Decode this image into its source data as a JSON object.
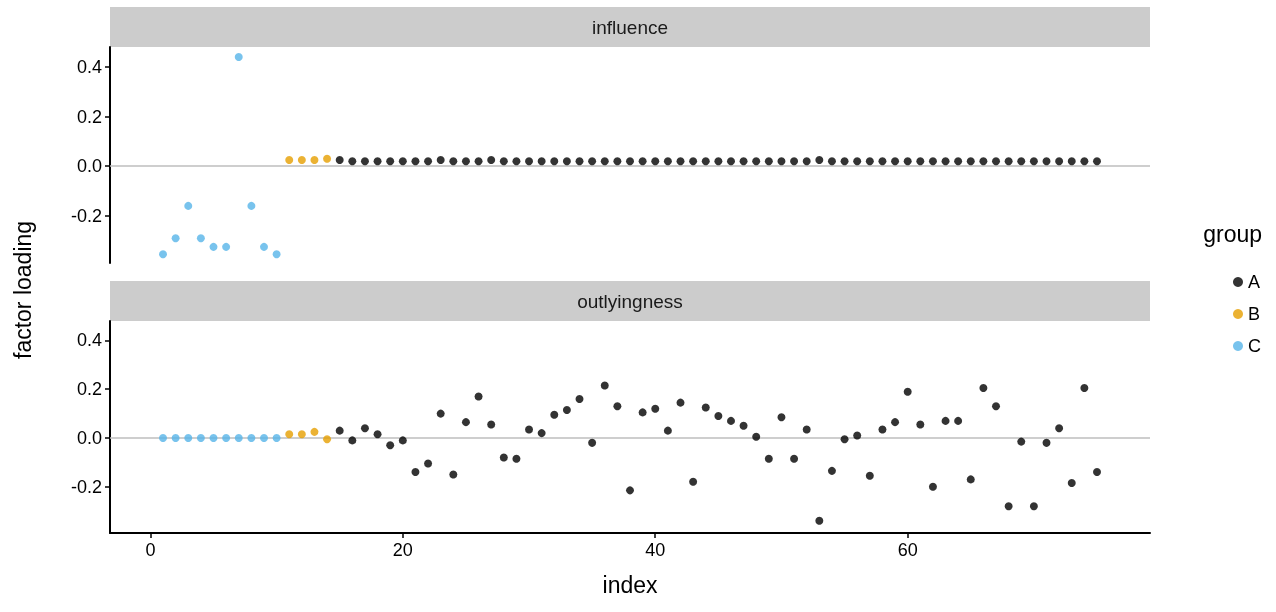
{
  "chart_data": [
    {
      "type": "scatter",
      "title": "influence",
      "ylabel": "factor loading",
      "legend_title": "group",
      "legend": "right",
      "marker": "circle",
      "grid": false,
      "tick_labels": "y",
      "xlim": [
        -3.2,
        79.2
      ],
      "xticks": [
        0,
        20,
        40,
        60
      ],
      "ylim": [
        -0.39,
        0.48
      ],
      "yticks": [
        -0.2,
        {
          "value": 0,
          "label": "0.0"
        },
        0.2,
        0.4
      ],
      "ref_lines": [
        {
          "axis": "y",
          "value": 0,
          "color": "#bebebe"
        }
      ],
      "series": [
        {
          "name": "A",
          "color": "#000000",
          "x": [
            15,
            16,
            17,
            18,
            19,
            20,
            21,
            22,
            23,
            24,
            25,
            26,
            27,
            28,
            29,
            30,
            31,
            32,
            33,
            34,
            35,
            36,
            37,
            38,
            39,
            40,
            41,
            42,
            43,
            44,
            45,
            46,
            47,
            48,
            49,
            50,
            51,
            52,
            53,
            54,
            55,
            56,
            57,
            58,
            59,
            60,
            61,
            62,
            63,
            64,
            65,
            66,
            67,
            68,
            69,
            70,
            71,
            72,
            73,
            74,
            75
          ],
          "values": [
            0.025,
            0.02,
            0.02,
            0.02,
            0.02,
            0.02,
            0.02,
            0.02,
            0.025,
            0.02,
            0.02,
            0.02,
            0.025,
            0.02,
            0.02,
            0.02,
            0.02,
            0.02,
            0.02,
            0.02,
            0.02,
            0.02,
            0.02,
            0.02,
            0.02,
            0.02,
            0.02,
            0.02,
            0.02,
            0.02,
            0.02,
            0.02,
            0.02,
            0.02,
            0.02,
            0.02,
            0.02,
            0.02,
            0.025,
            0.02,
            0.02,
            0.02,
            0.02,
            0.02,
            0.02,
            0.02,
            0.02,
            0.02,
            0.02,
            0.02,
            0.02,
            0.02,
            0.02,
            0.02,
            0.02,
            0.02,
            0.02,
            0.02,
            0.02,
            0.02,
            0.02
          ]
        },
        {
          "name": "B",
          "color": "#e69f00",
          "x": [
            11,
            12,
            13,
            14
          ],
          "values": [
            0.025,
            0.025,
            0.025,
            0.03
          ]
        },
        {
          "name": "C",
          "color": "#56b4e9",
          "x": [
            1,
            2,
            3,
            4,
            5,
            6,
            7,
            8,
            9,
            10
          ],
          "values": [
            -0.355,
            -0.29,
            -0.16,
            -0.29,
            -0.325,
            -0.325,
            0.44,
            -0.16,
            -0.325,
            -0.355
          ]
        }
      ]
    },
    {
      "type": "scatter",
      "title": "outlyingness",
      "xlabel": "index",
      "legend": false,
      "marker": "circle",
      "grid": false,
      "xlim": [
        -3.2,
        79.2
      ],
      "xticks": [
        0,
        20,
        40,
        60
      ],
      "ylim": [
        -0.39,
        0.48
      ],
      "yticks": [
        -0.2,
        {
          "value": 0,
          "label": "0.0"
        },
        0.2,
        0.4
      ],
      "ref_lines": [
        {
          "axis": "y",
          "value": 0,
          "color": "#bebebe"
        }
      ],
      "series": [
        {
          "color": "#000000",
          "x": [
            15,
            16,
            17,
            18,
            19,
            20,
            21,
            22,
            23,
            24,
            25,
            26,
            27,
            28,
            29,
            30,
            31,
            32,
            33,
            34,
            35,
            36,
            37,
            38,
            39,
            40,
            41,
            42,
            43,
            44,
            45,
            46,
            47,
            48,
            49,
            50,
            51,
            52,
            53,
            54,
            55,
            56,
            57,
            58,
            59,
            60,
            61,
            62,
            63,
            64,
            65,
            66,
            67,
            68,
            69,
            70,
            71,
            72,
            73,
            74,
            75
          ],
          "values": [
            0.03,
            -0.01,
            0.04,
            0.015,
            -0.03,
            -0.01,
            -0.14,
            -0.105,
            0.1,
            -0.15,
            0.065,
            0.17,
            0.055,
            -0.08,
            -0.085,
            0.035,
            0.02,
            0.095,
            0.115,
            0.16,
            -0.02,
            0.215,
            0.13,
            -0.215,
            0.105,
            0.12,
            0.03,
            0.145,
            -0.18,
            0.125,
            0.09,
            0.07,
            0.05,
            0.005,
            -0.085,
            0.085,
            -0.085,
            0.035,
            -0.34,
            -0.135,
            -0.005,
            0.01,
            -0.155,
            0.035,
            0.065,
            0.19,
            0.055,
            -0.2,
            0.07,
            0.07,
            -0.17,
            0.205,
            0.13,
            -0.28,
            -0.015,
            -0.28,
            -0.02,
            0.04,
            -0.185,
            0.205,
            -0.14
          ]
        },
        {
          "color": "#e69f00",
          "x": [
            11,
            12,
            13,
            14
          ],
          "values": [
            0.015,
            0.015,
            0.025,
            -0.005
          ]
        },
        {
          "color": "#56b4e9",
          "x": [
            1,
            2,
            3,
            4,
            5,
            6,
            7,
            8,
            9,
            10
          ],
          "values": [
            0,
            0,
            0,
            0,
            0,
            0,
            0,
            0,
            0,
            0
          ]
        }
      ]
    }
  ]
}
